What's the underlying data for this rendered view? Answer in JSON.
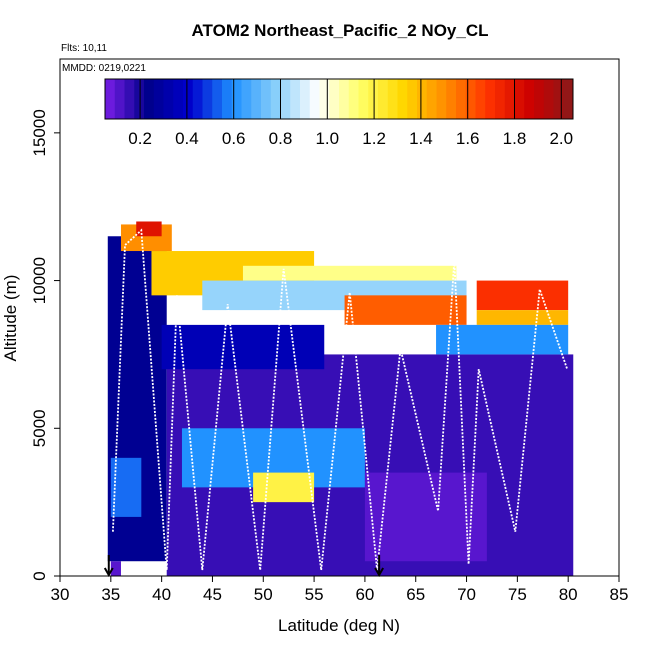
{
  "chart_data": {
    "type": "heatmap",
    "title": "ATOM2 Northeast_Pacific_2 NOy_CL",
    "flights_label": "Flts: 10,11",
    "dates_label": "MMDD: 0219,0221",
    "xlabel": "Latitude (deg N)",
    "ylabel": "Altitude (m)",
    "xlim": [
      30,
      85
    ],
    "ylim": [
      0,
      17500
    ],
    "x_ticks": [
      "30",
      "35",
      "40",
      "45",
      "50",
      "55",
      "60",
      "65",
      "70",
      "75",
      "80",
      "85"
    ],
    "y_ticks": [
      "0",
      "5000",
      "10000",
      "15000"
    ],
    "colorbar": {
      "range": [
        0.05,
        2.05
      ],
      "ticks": [
        "0.2",
        "0.4",
        "0.6",
        "0.8",
        "1.0",
        "1.2",
        "1.4",
        "1.6",
        "1.8",
        "2.0"
      ],
      "colors": [
        "#7a1fe8",
        "#00008b",
        "#0000cd",
        "#1e90ff",
        "#87cefa",
        "#ffffff",
        "#ffff66",
        "#ffd700",
        "#ff8c00",
        "#ff3300",
        "#cc0000",
        "#8b1a1a"
      ]
    },
    "flight_markers_lat": [
      34.8,
      61.4
    ],
    "grid_cells": [
      {
        "lat": [
          35,
          36
        ],
        "alt": [
          0,
          500
        ],
        "v": 0.1
      },
      {
        "lat": [
          34.7,
          40.5
        ],
        "alt": [
          500,
          11500
        ],
        "v": 0.25
      },
      {
        "lat": [
          40.5,
          80.5
        ],
        "alt": [
          0,
          7500
        ],
        "v": 0.15
      },
      {
        "lat": [
          40,
          56
        ],
        "alt": [
          7000,
          8500
        ],
        "v": 0.35
      },
      {
        "lat": [
          36,
          41
        ],
        "alt": [
          11000,
          11900
        ],
        "v": 1.5
      },
      {
        "lat": [
          37.5,
          40
        ],
        "alt": [
          11500,
          12000
        ],
        "v": 1.8
      },
      {
        "lat": [
          39,
          55
        ],
        "alt": [
          9500,
          11000
        ],
        "v": 1.35
      },
      {
        "lat": [
          48,
          69
        ],
        "alt": [
          10000,
          10500
        ],
        "v": 1.1
      },
      {
        "lat": [
          44,
          70
        ],
        "alt": [
          9000,
          10000
        ],
        "v": 0.8
      },
      {
        "lat": [
          58,
          70
        ],
        "alt": [
          8500,
          9500
        ],
        "v": 1.6
      },
      {
        "lat": [
          71,
          80
        ],
        "alt": [
          9000,
          10000
        ],
        "v": 1.7
      },
      {
        "lat": [
          71,
          80
        ],
        "alt": [
          8500,
          9000
        ],
        "v": 1.4
      },
      {
        "lat": [
          67,
          80
        ],
        "alt": [
          7500,
          8500
        ],
        "v": 0.6
      },
      {
        "lat": [
          42,
          60
        ],
        "alt": [
          3000,
          5000
        ],
        "v": 0.6
      },
      {
        "lat": [
          49,
          55
        ],
        "alt": [
          2500,
          3500
        ],
        "v": 1.2
      },
      {
        "lat": [
          35,
          38
        ],
        "alt": [
          2000,
          4000
        ],
        "v": 0.55
      },
      {
        "lat": [
          60,
          72
        ],
        "alt": [
          500,
          3500
        ],
        "v": 0.1
      }
    ]
  }
}
